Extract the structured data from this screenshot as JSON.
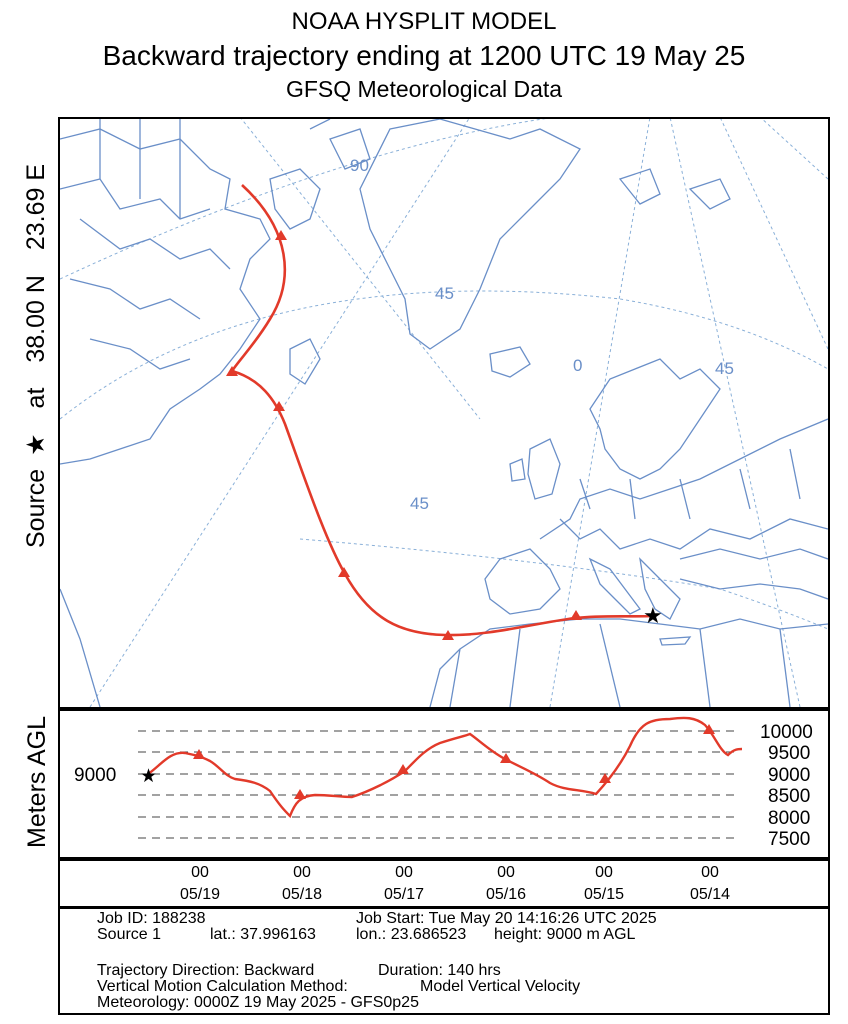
{
  "titles": {
    "line1": "NOAA HYSPLIT MODEL",
    "line2": "Backward trajectory ending at 1200 UTC 19 May 25",
    "line3": "GFSQ Meteorological Data"
  },
  "side_label": {
    "source": "Source",
    "star": "★",
    "at": "at",
    "lat": "38.00 N",
    "lon": "23.69 E"
  },
  "map": {
    "grid_labels": [
      "90",
      "45",
      "0",
      "45",
      "45"
    ],
    "colors": {
      "coast": "#6a8fc8",
      "trajectory": "#e23a2a",
      "grid": "#8ab0d8"
    }
  },
  "profile": {
    "axis_label": "Meters AGL",
    "start_height_label": "9000",
    "right_ticks": [
      "10000",
      "9500",
      "9000",
      "8500",
      "8000",
      "7500"
    ]
  },
  "time_axis": {
    "labels": [
      {
        "hour": "00",
        "date": "05/19"
      },
      {
        "hour": "00",
        "date": "05/18"
      },
      {
        "hour": "00",
        "date": "05/17"
      },
      {
        "hour": "00",
        "date": "05/16"
      },
      {
        "hour": "00",
        "date": "05/15"
      },
      {
        "hour": "00",
        "date": "05/14"
      }
    ]
  },
  "info": {
    "job_id": "Job ID: 188238",
    "job_start": "Job Start: Tue May 20 14:16:26 UTC 2025",
    "source": "Source 1",
    "lat": "lat.: 37.996163",
    "lon": "lon.: 23.686523",
    "height": "height: 9000 m AGL",
    "direction": "Trajectory Direction: Backward",
    "duration": "Duration: 140 hrs",
    "vertical_method": "Vertical Motion Calculation Method:",
    "vertical_value": "Model Vertical Velocity",
    "meteorology": "Meteorology: 0000Z 19 May 2025 - GFS0p25"
  }
}
